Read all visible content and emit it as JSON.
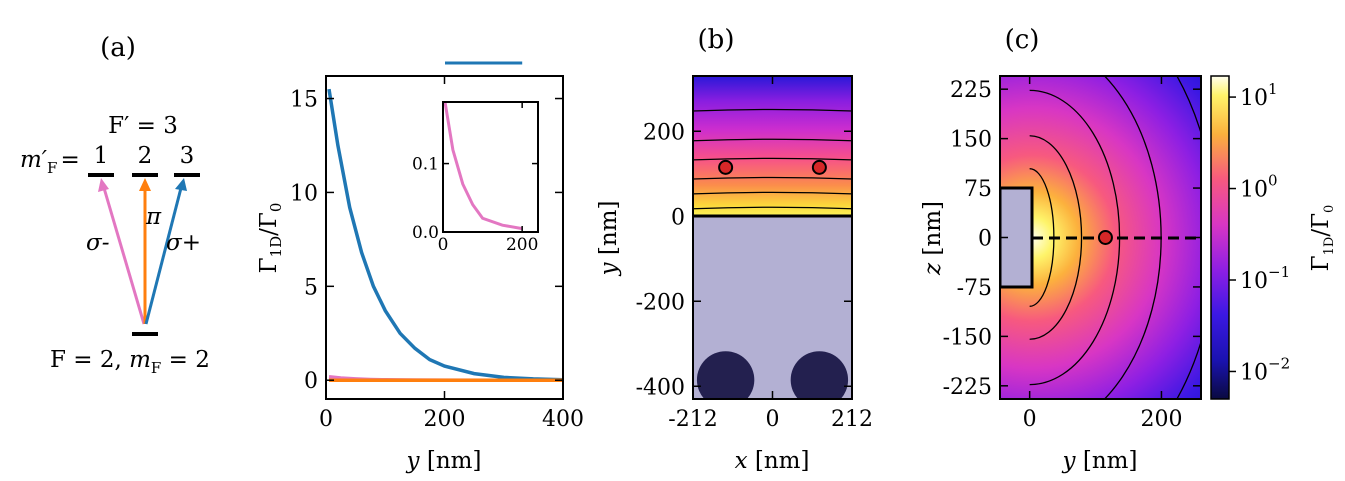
{
  "panels": {
    "a": {
      "label": "(a)",
      "upper_level": "F′ = 3",
      "mF_prime_prefix": "m′",
      "mF_prime_sub": "F",
      "mF_prime_eq": "=",
      "sublevels": [
        "1",
        "2",
        "3"
      ],
      "lower_level_prefix": "F = 2, ",
      "lower_level_m": "m",
      "lower_level_sub": "F",
      "lower_level_eq": " = 2",
      "transitions": [
        {
          "name": "σ-",
          "color": "#e377c2"
        },
        {
          "name": "π",
          "color": "#ff7f0e"
        },
        {
          "name": "σ+",
          "color": "#1f77b4"
        }
      ]
    },
    "b": {
      "label": "(b)"
    },
    "c": {
      "label": "(c)"
    }
  },
  "chart_data": [
    {
      "type": "line",
      "panel": "main-line-plot",
      "xlabel_var": "y",
      "xlabel_unit": " [nm]",
      "ylabel": "Γ₁ᴅ/Γ₀",
      "ylabel_main": "Γ",
      "ylabel_sub": "1D",
      "ylabel_den": "/Γ",
      "ylabel_den_sub": "0",
      "xlim": [
        0,
        400
      ],
      "ylim": [
        -1,
        16.2
      ],
      "xticks": [
        "0",
        "200",
        "400"
      ],
      "yticks": [
        "0",
        "5",
        "10",
        "15"
      ],
      "xtick_values": [
        0,
        200,
        400
      ],
      "ytick_values": [
        0,
        5,
        10,
        15
      ],
      "series": [
        {
          "name": "σ+",
          "color": "#1f77b4",
          "x": [
            5,
            20,
            40,
            60,
            80,
            100,
            125,
            150,
            175,
            200,
            250,
            300,
            350,
            400
          ],
          "y": [
            15.5,
            12.5,
            9.2,
            6.8,
            5.0,
            3.7,
            2.5,
            1.7,
            1.1,
            0.75,
            0.35,
            0.15,
            0.07,
            0.03
          ]
        },
        {
          "name": "σ-",
          "color": "#e377c2",
          "x": [
            5,
            25,
            50,
            75,
            100,
            150,
            200,
            300,
            400
          ],
          "y": [
            0.19,
            0.12,
            0.07,
            0.04,
            0.02,
            0.01,
            0.005,
            0.002,
            0.001
          ]
        },
        {
          "name": "π",
          "color": "#ff7f0e",
          "x": [
            5,
            400
          ],
          "y": [
            0.0,
            0.0
          ]
        }
      ],
      "inset": {
        "xlim": [
          0,
          240
        ],
        "ylim": [
          0,
          0.19
        ],
        "xticks": [
          "0",
          "200"
        ],
        "yticks": [
          "0.0",
          "0.1"
        ],
        "xtick_values": [
          0,
          200
        ],
        "ytick_values": [
          0.0,
          0.1
        ]
      }
    },
    {
      "type": "heatmap",
      "panel": "b",
      "xlabel_var": "x",
      "xlabel_unit": " [nm]",
      "ylabel_var": "y",
      "ylabel_unit": " [nm]",
      "xlim": [
        -212,
        212
      ],
      "ylim": [
        -430,
        330
      ],
      "xticks": [
        "-212",
        "0",
        "212"
      ],
      "xtick_values": [
        -212,
        0,
        212
      ],
      "yticks": [
        "-400",
        "-200",
        "0",
        "200"
      ],
      "ytick_values": [
        -400,
        -200,
        0,
        200
      ],
      "atoms": [
        {
          "x": -125,
          "y": 115
        },
        {
          "x": 125,
          "y": 115
        }
      ],
      "contour_levels_y": [
        20,
        55,
        90,
        135,
        180,
        250
      ],
      "fibers": [
        {
          "x": -125,
          "y": -385,
          "r": 90
        },
        {
          "x": 125,
          "y": -385,
          "r": 90
        }
      ]
    },
    {
      "type": "heatmap",
      "panel": "c",
      "xlabel_var": "y",
      "xlabel_unit": " [nm]",
      "ylabel_var": "z",
      "ylabel_unit": " [nm]",
      "xlim": [
        -45,
        260
      ],
      "ylim": [
        -245,
        245
      ],
      "xticks": [
        "0",
        "200"
      ],
      "xtick_values": [
        0,
        200
      ],
      "yticks": [
        "225",
        "150",
        "75",
        "0",
        "-75",
        "-150",
        "-225"
      ],
      "ytick_values": [
        225,
        150,
        75,
        0,
        -75,
        -150,
        -225
      ],
      "atom": {
        "x": 115,
        "y": 0
      },
      "contour_radii": [
        35,
        75,
        130,
        190,
        270
      ],
      "colorbar": {
        "label_main": "Γ",
        "label_sub": "1D",
        "label_den": "/Γ",
        "label_den_sub": "0",
        "scale": "log",
        "range": [
          0.005,
          17
        ],
        "ticks": [
          {
            "base": "10",
            "exp": "1",
            "value": 10
          },
          {
            "base": "10",
            "exp": "0",
            "value": 1
          },
          {
            "base": "10",
            "exp": "−1",
            "value": 0.1
          },
          {
            "base": "10",
            "exp": "−2",
            "value": 0.01
          }
        ]
      }
    }
  ]
}
